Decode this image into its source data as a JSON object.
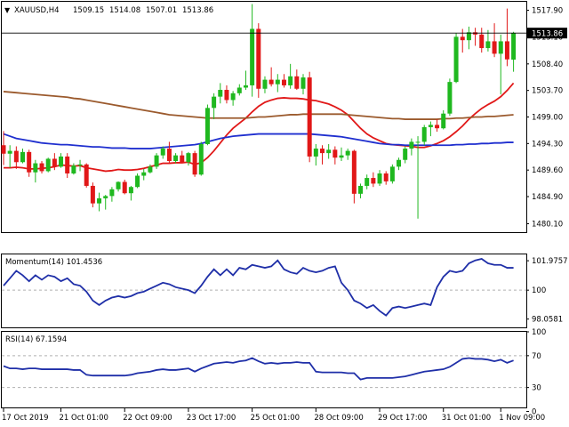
{
  "header": {
    "symbol": "XAUUSD,H4",
    "open": "1509.15",
    "high": "1514.08",
    "low": "1507.01",
    "close": "1513.86"
  },
  "colors": {
    "bull": "#1fb81f",
    "bear": "#e11818",
    "ma_fast": "#e11818",
    "ma_mid": "#1f2fcf",
    "ma_slow": "#9b5a2d",
    "indicator": "#1f2fa8"
  },
  "chart_data": [
    {
      "type": "candlestick",
      "title": "XAUUSD,H4",
      "ylim": [
        1478.6,
        1519.4
      ],
      "y_ticks": [
        "1517.90",
        "1513.16",
        "1508.40",
        "1503.70",
        "1499.00",
        "1494.30",
        "1489.60",
        "1484.90",
        "1480.10"
      ],
      "y_tick_values": [
        1517.9,
        1513.16,
        1508.4,
        1503.7,
        1499.0,
        1494.3,
        1489.6,
        1484.9,
        1480.1
      ],
      "current_price": "1513.86",
      "x_labels": [
        "17 Oct 2019",
        "21 Oct 01:00",
        "22 Oct 09:00",
        "23 Oct 17:00",
        "25 Oct 01:00",
        "28 Oct 09:00",
        "29 Oct 17:00",
        "31 Oct 01:00",
        "1 Nov 09:00"
      ],
      "x_label_index": [
        0,
        9,
        19,
        29,
        39,
        49,
        59,
        69,
        78
      ],
      "candles": [
        [
          1494.0,
          1496.5,
          1490.5,
          1492.5
        ],
        [
          1492.5,
          1494.0,
          1490.0,
          1493.0
        ],
        [
          1493.0,
          1493.8,
          1489.8,
          1491.0
        ],
        [
          1491.0,
          1493.4,
          1490.8,
          1492.8
        ],
        [
          1492.8,
          1493.2,
          1488.4,
          1489.2
        ],
        [
          1489.2,
          1491.4,
          1487.4,
          1490.8
        ],
        [
          1490.8,
          1491.2,
          1489.0,
          1489.4
        ],
        [
          1489.4,
          1491.8,
          1489.2,
          1491.6
        ],
        [
          1491.6,
          1492.6,
          1489.6,
          1490.2
        ],
        [
          1490.2,
          1492.6,
          1490.0,
          1492.0
        ],
        [
          1492.0,
          1492.6,
          1488.2,
          1489.0
        ],
        [
          1489.0,
          1490.8,
          1488.8,
          1490.4
        ],
        [
          1490.4,
          1491.4,
          1489.4,
          1490.6
        ],
        [
          1490.6,
          1490.8,
          1486.5,
          1486.8
        ],
        [
          1486.8,
          1487.4,
          1483.0,
          1483.7
        ],
        [
          1483.7,
          1485.6,
          1482.3,
          1484.6
        ],
        [
          1484.6,
          1485.2,
          1482.6,
          1485.0
        ],
        [
          1485.0,
          1486.6,
          1484.0,
          1486.2
        ],
        [
          1486.2,
          1487.6,
          1485.8,
          1487.5
        ],
        [
          1487.5,
          1487.9,
          1485.3,
          1485.5
        ],
        [
          1485.5,
          1486.8,
          1484.2,
          1486.6
        ],
        [
          1486.6,
          1489.0,
          1486.4,
          1488.6
        ],
        [
          1488.6,
          1489.8,
          1487.8,
          1489.2
        ],
        [
          1489.2,
          1490.6,
          1489.0,
          1490.2
        ],
        [
          1490.2,
          1492.6,
          1489.8,
          1492.2
        ],
        [
          1492.2,
          1493.8,
          1491.6,
          1493.4
        ],
        [
          1493.4,
          1494.6,
          1490.8,
          1491.2
        ],
        [
          1491.2,
          1492.6,
          1490.8,
          1492.2
        ],
        [
          1492.2,
          1493.0,
          1490.8,
          1491.0
        ],
        [
          1491.0,
          1492.8,
          1490.4,
          1492.6
        ],
        [
          1492.6,
          1493.0,
          1488.4,
          1488.8
        ],
        [
          1488.8,
          1494.6,
          1488.6,
          1494.2
        ],
        [
          1494.2,
          1501.2,
          1494.0,
          1500.6
        ],
        [
          1500.6,
          1503.2,
          1498.6,
          1502.6
        ],
        [
          1502.6,
          1505.0,
          1501.4,
          1503.8
        ],
        [
          1503.8,
          1504.6,
          1501.4,
          1502.0
        ],
        [
          1502.0,
          1503.6,
          1501.0,
          1503.2
        ],
        [
          1503.2,
          1504.8,
          1502.8,
          1504.2
        ],
        [
          1504.2,
          1507.2,
          1503.8,
          1504.6
        ],
        [
          1504.6,
          1519.0,
          1502.6,
          1514.6
        ],
        [
          1514.6,
          1515.6,
          1502.4,
          1504.0
        ],
        [
          1504.0,
          1506.2,
          1503.2,
          1505.6
        ],
        [
          1505.6,
          1507.8,
          1504.4,
          1504.8
        ],
        [
          1504.8,
          1506.6,
          1503.4,
          1505.6
        ],
        [
          1505.6,
          1506.6,
          1504.2,
          1504.6
        ],
        [
          1504.6,
          1508.4,
          1504.0,
          1506.2
        ],
        [
          1506.2,
          1507.4,
          1503.8,
          1504.0
        ],
        [
          1504.0,
          1506.6,
          1503.0,
          1506.0
        ],
        [
          1506.0,
          1507.0,
          1491.0,
          1492.0
        ],
        [
          1492.0,
          1494.2,
          1490.4,
          1493.4
        ],
        [
          1493.4,
          1494.0,
          1490.6,
          1492.6
        ],
        [
          1492.6,
          1494.2,
          1491.6,
          1493.2
        ],
        [
          1493.2,
          1493.8,
          1490.6,
          1491.8
        ],
        [
          1491.8,
          1493.6,
          1491.2,
          1492.2
        ],
        [
          1492.2,
          1493.4,
          1491.4,
          1493.0
        ],
        [
          1493.0,
          1493.2,
          1483.7,
          1485.4
        ],
        [
          1485.4,
          1487.2,
          1484.6,
          1486.8
        ],
        [
          1486.8,
          1488.8,
          1486.2,
          1488.2
        ],
        [
          1488.2,
          1489.2,
          1486.6,
          1487.2
        ],
        [
          1487.2,
          1489.6,
          1486.8,
          1489.0
        ],
        [
          1489.0,
          1489.4,
          1487.0,
          1487.6
        ],
        [
          1487.6,
          1490.6,
          1487.2,
          1490.2
        ],
        [
          1490.2,
          1491.8,
          1489.6,
          1491.4
        ],
        [
          1491.4,
          1493.8,
          1490.8,
          1493.4
        ],
        [
          1493.4,
          1495.2,
          1492.2,
          1494.6
        ],
        [
          1494.6,
          1495.6,
          1481.0,
          1494.6
        ],
        [
          1494.6,
          1497.6,
          1494.0,
          1497.2
        ],
        [
          1497.2,
          1498.2,
          1495.6,
          1497.6
        ],
        [
          1497.6,
          1498.6,
          1496.4,
          1497.0
        ],
        [
          1497.0,
          1500.2,
          1496.8,
          1499.6
        ],
        [
          1499.6,
          1505.8,
          1499.2,
          1505.2
        ],
        [
          1505.2,
          1513.8,
          1505.0,
          1513.2
        ],
        [
          1513.2,
          1514.6,
          1510.4,
          1512.6
        ],
        [
          1512.6,
          1515.0,
          1511.0,
          1514.0
        ],
        [
          1514.0,
          1514.8,
          1511.6,
          1513.6
        ],
        [
          1513.6,
          1514.8,
          1510.4,
          1511.2
        ],
        [
          1511.2,
          1514.4,
          1510.6,
          1512.4
        ],
        [
          1512.4,
          1515.6,
          1509.6,
          1510.2
        ],
        [
          1510.2,
          1513.6,
          1503.0,
          1512.4
        ],
        [
          1512.4,
          1518.2,
          1508.0,
          1509.2
        ],
        [
          1509.15,
          1514.08,
          1507.01,
          1513.86
        ]
      ],
      "series": [
        {
          "role": "fast",
          "color": "#e11818",
          "values": [
            1490.0,
            1490.0,
            1490.1,
            1490.0,
            1489.8,
            1489.8,
            1489.9,
            1490.0,
            1490.2,
            1490.5,
            1490.4,
            1490.3,
            1490.4,
            1490.0,
            1489.8,
            1489.6,
            1489.4,
            1489.5,
            1489.7,
            1489.6,
            1489.6,
            1489.7,
            1489.9,
            1490.2,
            1490.5,
            1490.8,
            1490.8,
            1490.9,
            1490.9,
            1491.0,
            1490.6,
            1490.9,
            1491.8,
            1493.0,
            1494.4,
            1495.8,
            1497.0,
            1497.9,
            1498.8,
            1499.9,
            1500.9,
            1501.6,
            1502.0,
            1502.3,
            1502.4,
            1502.3,
            1502.3,
            1502.2,
            1502.0,
            1501.9,
            1501.6,
            1501.3,
            1500.8,
            1500.2,
            1499.4,
            1498.2,
            1497.0,
            1496.0,
            1495.3,
            1494.8,
            1494.3,
            1494.1,
            1494.0,
            1493.9,
            1493.8,
            1493.6,
            1493.6,
            1493.9,
            1494.3,
            1494.8,
            1495.5,
            1496.4,
            1497.4,
            1498.6,
            1499.6,
            1500.5,
            1501.2,
            1501.8,
            1502.6,
            1503.7,
            1505.0
          ]
        },
        {
          "role": "mid",
          "color": "#1f2fcf",
          "values": [
            1496.0,
            1495.6,
            1495.2,
            1495.0,
            1494.8,
            1494.6,
            1494.4,
            1494.3,
            1494.2,
            1494.1,
            1494.1,
            1494.0,
            1493.9,
            1493.8,
            1493.7,
            1493.7,
            1493.6,
            1493.5,
            1493.5,
            1493.5,
            1493.4,
            1493.4,
            1493.4,
            1493.4,
            1493.5,
            1493.6,
            1493.7,
            1493.8,
            1493.9,
            1494.0,
            1494.1,
            1494.3,
            1494.6,
            1494.9,
            1495.2,
            1495.4,
            1495.6,
            1495.7,
            1495.8,
            1495.9,
            1496.0,
            1496.0,
            1496.0,
            1496.0,
            1496.0,
            1496.0,
            1496.0,
            1496.0,
            1496.0,
            1495.9,
            1495.8,
            1495.7,
            1495.6,
            1495.5,
            1495.3,
            1495.1,
            1494.9,
            1494.7,
            1494.5,
            1494.3,
            1494.2,
            1494.1,
            1494.1,
            1494.0,
            1494.0,
            1494.0,
            1494.0,
            1494.0,
            1494.0,
            1494.0,
            1494.0,
            1494.1,
            1494.1,
            1494.2,
            1494.2,
            1494.3,
            1494.3,
            1494.4,
            1494.4,
            1494.5,
            1494.5
          ]
        },
        {
          "role": "slow",
          "color": "#9b5a2d",
          "values": [
            1503.5,
            1503.4,
            1503.3,
            1503.2,
            1503.1,
            1503.0,
            1502.9,
            1502.8,
            1502.7,
            1502.6,
            1502.5,
            1502.3,
            1502.2,
            1502.0,
            1501.8,
            1501.6,
            1501.4,
            1501.2,
            1501.0,
            1500.8,
            1500.6,
            1500.4,
            1500.2,
            1500.0,
            1499.8,
            1499.6,
            1499.4,
            1499.3,
            1499.2,
            1499.1,
            1499.0,
            1498.9,
            1498.8,
            1498.8,
            1498.8,
            1498.8,
            1498.8,
            1498.8,
            1498.8,
            1498.9,
            1499.0,
            1499.0,
            1499.1,
            1499.2,
            1499.3,
            1499.4,
            1499.4,
            1499.5,
            1499.5,
            1499.5,
            1499.5,
            1499.5,
            1499.5,
            1499.5,
            1499.4,
            1499.3,
            1499.2,
            1499.1,
            1499.0,
            1498.9,
            1498.8,
            1498.7,
            1498.7,
            1498.6,
            1498.6,
            1498.6,
            1498.6,
            1498.6,
            1498.6,
            1498.7,
            1498.7,
            1498.8,
            1498.8,
            1498.9,
            1499.0,
            1499.0,
            1499.1,
            1499.1,
            1499.2,
            1499.3,
            1499.4
          ]
        }
      ]
    },
    {
      "type": "line",
      "title": "Momentum(14) 101.4536",
      "ylim": [
        97.5,
        102.4
      ],
      "y_ticks": [
        "101.9757",
        "100",
        "98.0581"
      ],
      "y_tick_values": [
        101.9757,
        100,
        98.0581
      ],
      "reference_level": 100,
      "series": [
        {
          "name": "Momentum(14)",
          "color": "#1f2fa8",
          "values": [
            100.3,
            100.8,
            101.3,
            101.0,
            100.6,
            101.0,
            100.7,
            101.0,
            100.9,
            100.6,
            100.8,
            100.4,
            100.3,
            99.9,
            99.3,
            99.0,
            99.3,
            99.5,
            99.6,
            99.5,
            99.6,
            99.8,
            99.9,
            100.1,
            100.3,
            100.5,
            100.4,
            100.2,
            100.1,
            100.0,
            99.8,
            100.3,
            100.9,
            101.4,
            101.0,
            101.4,
            101.0,
            101.5,
            101.4,
            101.7,
            101.6,
            101.5,
            101.6,
            102.0,
            101.4,
            101.2,
            101.1,
            101.5,
            101.3,
            101.2,
            101.3,
            101.5,
            101.6,
            100.5,
            100.0,
            99.3,
            99.1,
            98.8,
            99.0,
            98.6,
            98.3,
            98.8,
            98.9,
            98.8,
            98.9,
            99.0,
            99.1,
            99.0,
            100.2,
            100.9,
            101.3,
            101.2,
            101.3,
            101.8,
            102.0,
            102.1,
            101.8,
            101.7,
            101.7,
            101.5,
            101.5
          ]
        }
      ]
    },
    {
      "type": "line",
      "title": "RSI(14) 67.1594",
      "ylim": [
        5,
        100
      ],
      "y_ticks": [
        "100",
        "70",
        "30",
        "0"
      ],
      "y_tick_values": [
        100,
        70,
        30,
        0
      ],
      "reference_levels": [
        70,
        30
      ],
      "series": [
        {
          "name": "RSI(14)",
          "color": "#1f2fa8",
          "values": [
            57,
            54,
            54,
            53,
            54,
            54,
            53,
            53,
            53,
            53,
            53,
            52,
            52,
            46,
            45,
            45,
            45,
            45,
            45,
            45,
            46,
            48,
            49,
            50,
            52,
            53,
            52,
            52,
            53,
            54,
            50,
            54,
            57,
            60,
            61,
            62,
            61,
            63,
            64,
            67,
            63,
            60,
            61,
            60,
            61,
            61,
            62,
            61,
            61,
            50,
            49,
            49,
            49,
            49,
            48,
            48,
            40,
            42,
            42,
            42,
            42,
            42,
            43,
            44,
            46,
            48,
            50,
            51,
            52,
            53,
            56,
            61,
            66,
            67,
            66,
            66,
            65,
            63,
            65,
            61,
            64
          ]
        }
      ]
    }
  ]
}
